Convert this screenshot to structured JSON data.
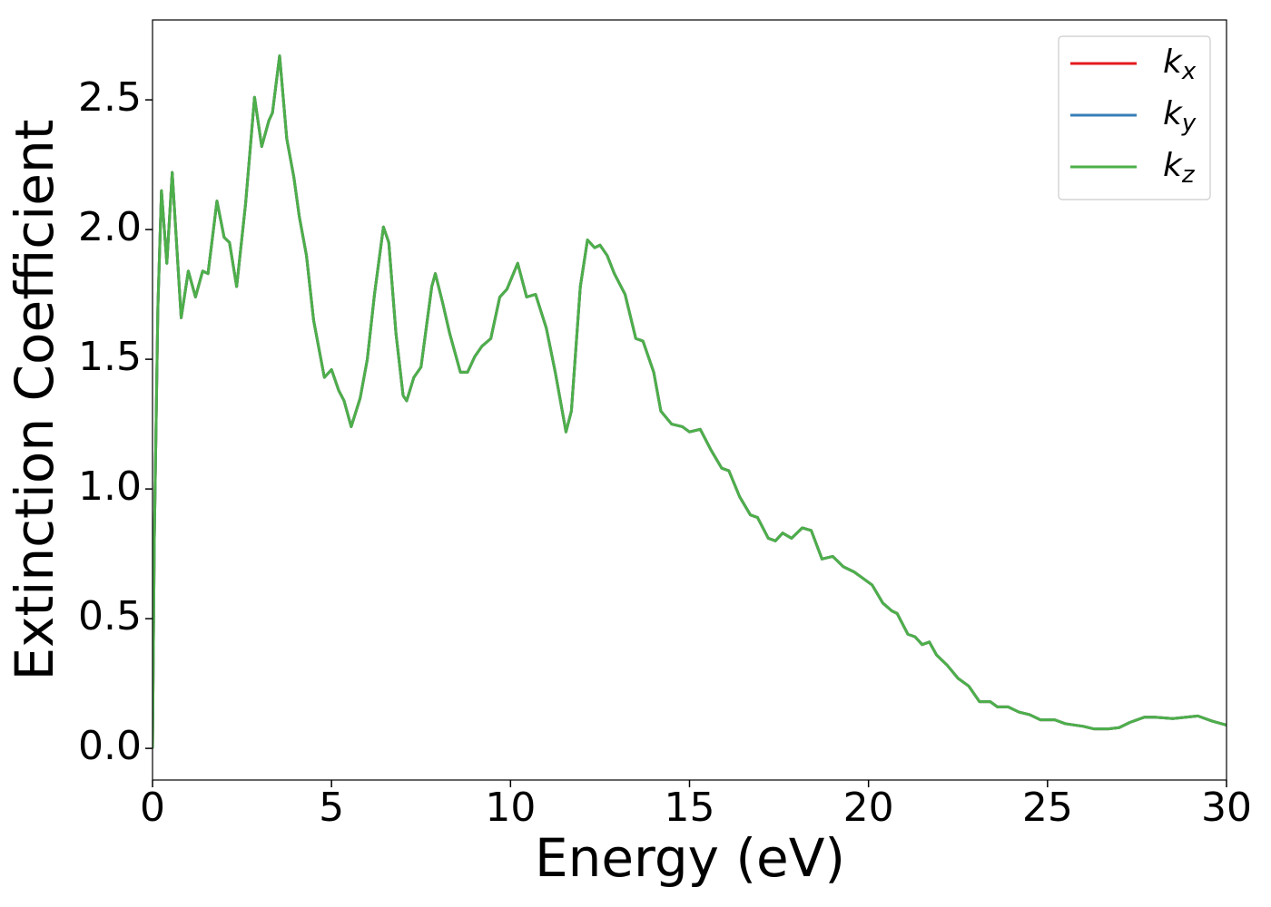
{
  "chart_data": {
    "type": "line",
    "xlabel": "Energy (eV)",
    "ylabel": "Extinction Coefficient",
    "xlim": [
      0,
      30
    ],
    "ylim": [
      -0.122,
      2.808
    ],
    "xticks": [
      0,
      5,
      10,
      15,
      20,
      25,
      30
    ],
    "yticks": [
      {
        "value": 0,
        "label": "0.0"
      },
      0.5,
      {
        "value": 1,
        "label": "1.0"
      },
      1.5,
      {
        "value": 2,
        "label": "2.0"
      },
      2.5
    ],
    "legend": "upper right",
    "x": [
      0,
      0.05,
      0.15,
      0.25,
      0.4,
      0.55,
      0.8,
      1.0,
      1.2,
      1.4,
      1.55,
      1.8,
      2.0,
      2.15,
      2.35,
      2.6,
      2.85,
      3.05,
      3.25,
      3.35,
      3.55,
      3.75,
      3.95,
      4.1,
      4.3,
      4.5,
      4.8,
      5.0,
      5.2,
      5.35,
      5.55,
      5.8,
      6.0,
      6.2,
      6.45,
      6.6,
      6.8,
      7.0,
      7.1,
      7.3,
      7.5,
      7.8,
      7.9,
      8.1,
      8.3,
      8.6,
      8.8,
      9.0,
      9.2,
      9.45,
      9.7,
      9.9,
      10.2,
      10.45,
      10.7,
      11.0,
      11.25,
      11.55,
      11.7,
      11.95,
      12.15,
      12.35,
      12.5,
      12.7,
      12.9,
      13.2,
      13.5,
      13.7,
      14.0,
      14.2,
      14.5,
      14.8,
      15.0,
      15.3,
      15.6,
      15.9,
      16.1,
      16.4,
      16.7,
      16.9,
      17.2,
      17.4,
      17.6,
      17.85,
      18.15,
      18.4,
      18.7,
      19.0,
      19.3,
      19.6,
      19.8,
      20.1,
      20.4,
      20.65,
      20.8,
      21.1,
      21.3,
      21.5,
      21.7,
      21.9,
      22.2,
      22.5,
      22.8,
      23.1,
      23.4,
      23.6,
      23.9,
      24.2,
      24.5,
      24.8,
      25.2,
      25.5,
      26.0,
      26.3,
      26.7,
      27.0,
      27.3,
      27.7,
      28.0,
      28.5,
      29.2,
      29.6,
      30
    ],
    "series": [
      {
        "name": "kx",
        "color": "#e41a1c",
        "values": [
          0,
          0.8,
          1.7,
          2.15,
          1.87,
          2.22,
          1.66,
          1.84,
          1.74,
          1.84,
          1.83,
          2.11,
          1.97,
          1.95,
          1.78,
          2.1,
          2.51,
          2.32,
          2.42,
          2.45,
          2.67,
          2.35,
          2.2,
          2.05,
          1.9,
          1.65,
          1.43,
          1.46,
          1.38,
          1.34,
          1.24,
          1.35,
          1.5,
          1.75,
          2.01,
          1.95,
          1.6,
          1.36,
          1.34,
          1.43,
          1.47,
          1.78,
          1.83,
          1.72,
          1.6,
          1.45,
          1.45,
          1.51,
          1.55,
          1.58,
          1.74,
          1.77,
          1.87,
          1.74,
          1.75,
          1.62,
          1.45,
          1.22,
          1.3,
          1.78,
          1.96,
          1.93,
          1.94,
          1.9,
          1.83,
          1.75,
          1.58,
          1.57,
          1.45,
          1.3,
          1.25,
          1.24,
          1.22,
          1.23,
          1.15,
          1.08,
          1.07,
          0.97,
          0.9,
          0.89,
          0.81,
          0.8,
          0.83,
          0.81,
          0.85,
          0.84,
          0.73,
          0.74,
          0.7,
          0.68,
          0.66,
          0.63,
          0.56,
          0.53,
          0.52,
          0.44,
          0.43,
          0.4,
          0.41,
          0.36,
          0.32,
          0.27,
          0.24,
          0.18,
          0.18,
          0.16,
          0.16,
          0.14,
          0.13,
          0.11,
          0.11,
          0.095,
          0.085,
          0.075,
          0.075,
          0.08,
          0.1,
          0.12,
          0.12,
          0.115,
          0.125,
          0.105,
          0.09
        ]
      },
      {
        "name": "ky",
        "color": "#377eb8",
        "values": [
          0,
          0.8,
          1.7,
          2.15,
          1.87,
          2.22,
          1.66,
          1.84,
          1.74,
          1.84,
          1.83,
          2.11,
          1.97,
          1.95,
          1.78,
          2.1,
          2.51,
          2.32,
          2.42,
          2.45,
          2.67,
          2.35,
          2.2,
          2.05,
          1.9,
          1.65,
          1.43,
          1.46,
          1.38,
          1.34,
          1.24,
          1.35,
          1.5,
          1.75,
          2.01,
          1.95,
          1.6,
          1.36,
          1.34,
          1.43,
          1.47,
          1.78,
          1.83,
          1.72,
          1.6,
          1.45,
          1.45,
          1.51,
          1.55,
          1.58,
          1.74,
          1.77,
          1.87,
          1.74,
          1.75,
          1.62,
          1.45,
          1.22,
          1.3,
          1.78,
          1.96,
          1.93,
          1.94,
          1.9,
          1.83,
          1.75,
          1.58,
          1.57,
          1.45,
          1.3,
          1.25,
          1.24,
          1.22,
          1.23,
          1.15,
          1.08,
          1.07,
          0.97,
          0.9,
          0.89,
          0.81,
          0.8,
          0.83,
          0.81,
          0.85,
          0.84,
          0.73,
          0.74,
          0.7,
          0.68,
          0.66,
          0.63,
          0.56,
          0.53,
          0.52,
          0.44,
          0.43,
          0.4,
          0.41,
          0.36,
          0.32,
          0.27,
          0.24,
          0.18,
          0.18,
          0.16,
          0.16,
          0.14,
          0.13,
          0.11,
          0.11,
          0.095,
          0.085,
          0.075,
          0.075,
          0.08,
          0.1,
          0.12,
          0.12,
          0.115,
          0.125,
          0.105,
          0.09
        ]
      },
      {
        "name": "kz",
        "color": "#4daf4a",
        "values": [
          0,
          0.8,
          1.7,
          2.15,
          1.87,
          2.22,
          1.66,
          1.84,
          1.74,
          1.84,
          1.83,
          2.11,
          1.97,
          1.95,
          1.78,
          2.1,
          2.51,
          2.32,
          2.42,
          2.45,
          2.67,
          2.35,
          2.2,
          2.05,
          1.9,
          1.65,
          1.43,
          1.46,
          1.38,
          1.34,
          1.24,
          1.35,
          1.5,
          1.75,
          2.01,
          1.95,
          1.6,
          1.36,
          1.34,
          1.43,
          1.47,
          1.78,
          1.83,
          1.72,
          1.6,
          1.45,
          1.45,
          1.51,
          1.55,
          1.58,
          1.74,
          1.77,
          1.87,
          1.74,
          1.75,
          1.62,
          1.45,
          1.22,
          1.3,
          1.78,
          1.96,
          1.93,
          1.94,
          1.9,
          1.83,
          1.75,
          1.58,
          1.57,
          1.45,
          1.3,
          1.25,
          1.24,
          1.22,
          1.23,
          1.15,
          1.08,
          1.07,
          0.97,
          0.9,
          0.89,
          0.81,
          0.8,
          0.83,
          0.81,
          0.85,
          0.84,
          0.73,
          0.74,
          0.7,
          0.68,
          0.66,
          0.63,
          0.56,
          0.53,
          0.52,
          0.44,
          0.43,
          0.4,
          0.41,
          0.36,
          0.32,
          0.27,
          0.24,
          0.18,
          0.18,
          0.16,
          0.16,
          0.14,
          0.13,
          0.11,
          0.11,
          0.095,
          0.085,
          0.075,
          0.075,
          0.08,
          0.1,
          0.12,
          0.12,
          0.115,
          0.125,
          0.105,
          0.09
        ]
      }
    ]
  }
}
